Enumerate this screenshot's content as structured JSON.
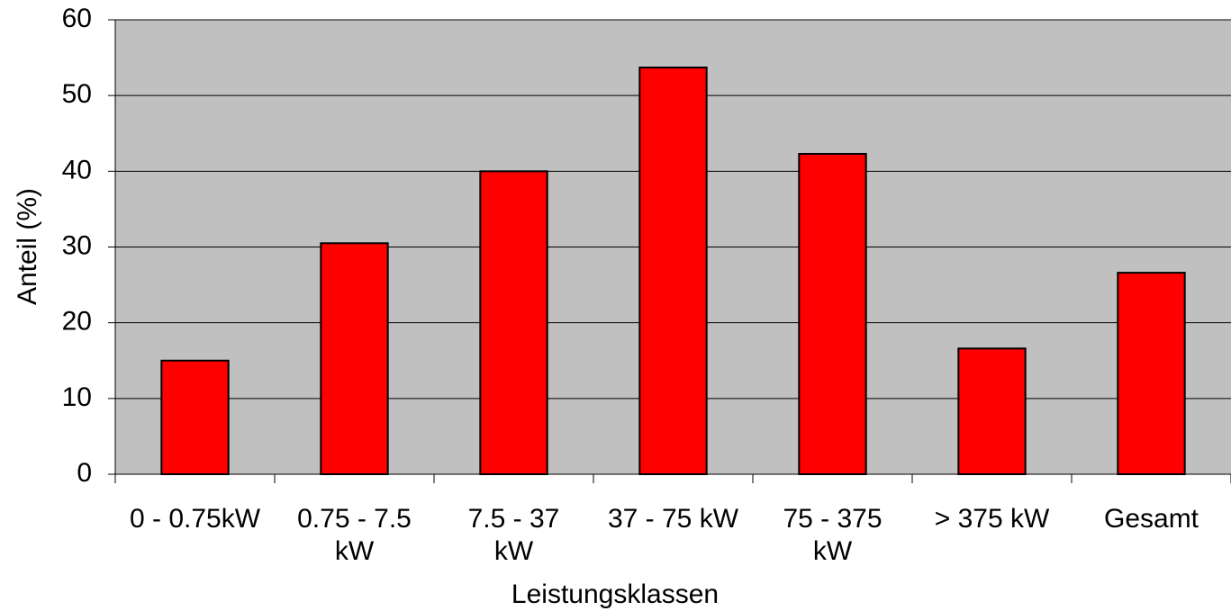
{
  "chart_data": {
    "type": "bar",
    "categories": [
      "0 - 0.75kW",
      "0.75 - 7.5 kW",
      "7.5 - 37 kW",
      "37 - 75 kW",
      "75 - 375 kW",
      "> 375 kW",
      "Gesamt"
    ],
    "values": [
      15,
      30.5,
      40,
      53.7,
      42.3,
      16.6,
      26.6
    ],
    "color": "#ff0000",
    "x_label": "Leistungsklassen",
    "y_label": "Anteil (%)",
    "ylim": [
      0,
      60
    ],
    "yticks": [
      0,
      10,
      20,
      30,
      40,
      50,
      60
    ],
    "grid": true
  }
}
